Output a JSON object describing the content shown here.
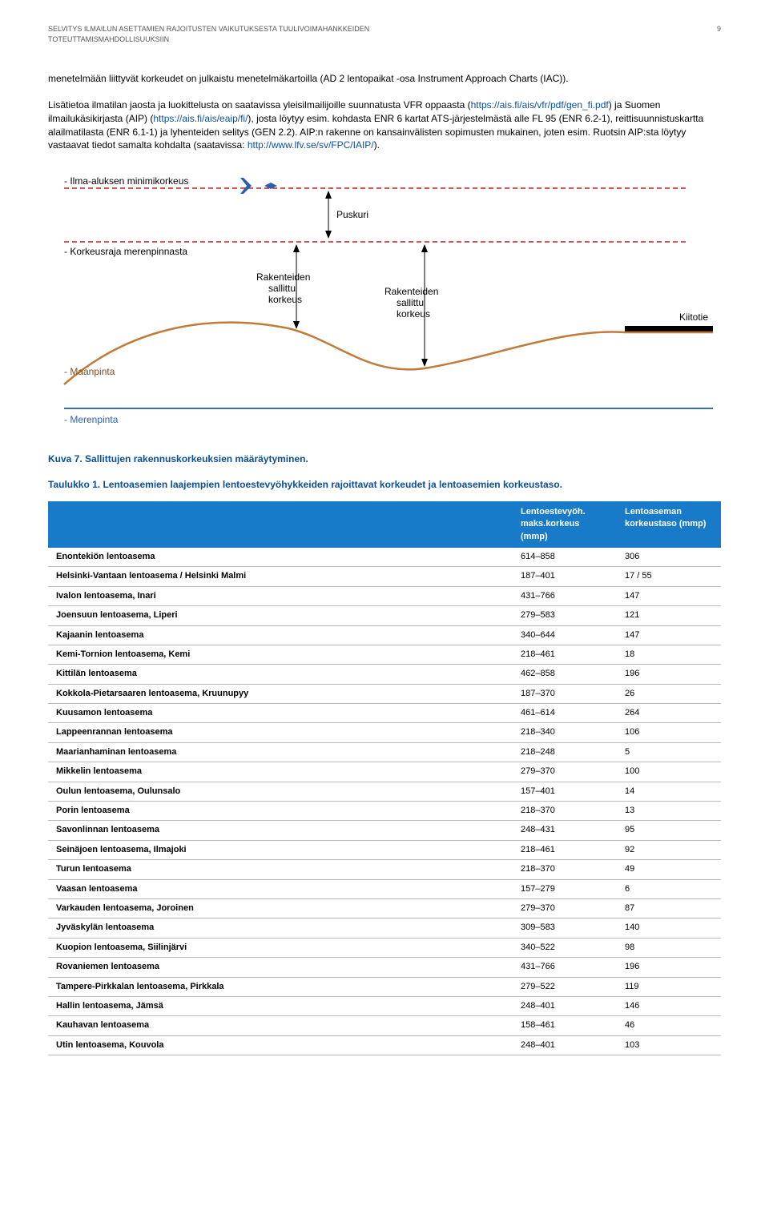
{
  "header": {
    "line1": "SELVITYS ILMAILUN ASETTAMIEN RAJOITUSTEN VAIKUTUKSESTA TUULIVOIMAHANKKEIDEN",
    "line2": "TOTEUTTAMISMAHDOLLISUUKSIIN",
    "pageNumber": "9"
  },
  "paragraphs": {
    "p1": "menetelmään liittyvät korkeudet on julkaistu menetelmäkartoilla (AD 2 lentopaikat -osa Instrument Approach Charts (IAC)).",
    "p2_a": "Lisätietoa ilmatilan jaosta ja luokittelusta on saatavissa yleisilmailijoille suunnatusta VFR oppaasta (",
    "p2_link1": "https://ais.fi/ais/vfr/pdf/gen_fi.pdf",
    "p2_b": ") ja Suomen ilmailukäsikirjasta (AIP) (",
    "p2_link2": "https://ais.fi/ais/eaip/fi/",
    "p2_c": "), josta löytyy esim. kohdasta ENR 6 kartat ATS-järjestelmästä alle FL 95 (ENR 6.2-1), reittisuunnistuskartta alailmatilasta (ENR 6.1-1) ja lyhenteiden selitys (GEN 2.2). AIP:n rakenne on kansainvälisten sopimusten mukainen, joten esim. Ruotsin AIP:sta löytyy vastaavat tiedot samalta kohdalta (saatavissa: ",
    "p2_link3": "http://www.lfv.se/sv/FPC/IAIP/",
    "p2_d": ")."
  },
  "diagram": {
    "labels": {
      "minAltitude": "- Ilma-aluksen minimikorkeus",
      "buffer": "Puskuri",
      "heightLimitSea": "- Korkeusraja merenpinnasta",
      "allowedHeight1": "Rakenteiden\nsallittu\nkorkeus",
      "allowedHeight2": "Rakenteiden\nsallittu\nkorkeus",
      "runway": "Kiitotie",
      "ground": "- Maanpinta",
      "sea": "- Merenpinta"
    },
    "colors": {
      "aircraft": "#2a5fb0",
      "dashedRed": "#c02020",
      "arrowBlack": "#000000",
      "groundBrown": "#c27a3a",
      "seaBlue": "#3a6fb0",
      "runwayBlack": "#000000"
    }
  },
  "captions": {
    "fig": "Kuva 7. Sallittujen rakennuskorkeuksien määräytyminen.",
    "tab": "Taulukko 1. Lentoasemien laajempien lentoestevyöhykkeiden rajoittavat korkeudet ja lentoasemien korkeustaso."
  },
  "table": {
    "headers": {
      "c1": "",
      "c2": "Lentoestevyöh. maks.korkeus (mmp)",
      "c3": "Lentoaseman korkeustaso (mmp)"
    },
    "rows": [
      {
        "name": "Enontekiön lentoasema",
        "h": "614–858",
        "alt": "306"
      },
      {
        "name": "Helsinki-Vantaan lentoasema / Helsinki Malmi",
        "h": "187–401",
        "alt": "17 / 55"
      },
      {
        "name": "Ivalon lentoasema, Inari",
        "h": "431–766",
        "alt": "147"
      },
      {
        "name": "Joensuun lentoasema, Liperi",
        "h": "279–583",
        "alt": "121"
      },
      {
        "name": "Kajaanin lentoasema",
        "h": "340–644",
        "alt": "147"
      },
      {
        "name": "Kemi-Tornion lentoasema, Kemi",
        "h": "218–461",
        "alt": "18"
      },
      {
        "name": "Kittilän lentoasema",
        "h": "462–858",
        "alt": "196"
      },
      {
        "name": "Kokkola-Pietarsaaren lentoasema, Kruunupyy",
        "h": "187–370",
        "alt": "26"
      },
      {
        "name": "Kuusamon lentoasema",
        "h": "461–614",
        "alt": "264"
      },
      {
        "name": "Lappeenrannan lentoasema",
        "h": "218–340",
        "alt": "106"
      },
      {
        "name": "Maarianhaminan lentoasema",
        "h": "218–248",
        "alt": "5"
      },
      {
        "name": "Mikkelin lentoasema",
        "h": "279–370",
        "alt": "100"
      },
      {
        "name": "Oulun lentoasema, Oulunsalo",
        "h": "157–401",
        "alt": "14"
      },
      {
        "name": "Porin lentoasema",
        "h": "218–370",
        "alt": "13"
      },
      {
        "name": "Savonlinnan lentoasema",
        "h": "248–431",
        "alt": "95"
      },
      {
        "name": "Seinäjoen lentoasema, Ilmajoki",
        "h": "218–461",
        "alt": "92"
      },
      {
        "name": "Turun lentoasema",
        "h": "218–370",
        "alt": "49"
      },
      {
        "name": "Vaasan lentoasema",
        "h": "157–279",
        "alt": "6"
      },
      {
        "name": "Varkauden lentoasema, Joroinen",
        "h": "279–370",
        "alt": "87"
      },
      {
        "name": "Jyväskylän lentoasema",
        "h": "309–583",
        "alt": "140"
      },
      {
        "name": "Kuopion lentoasema, Siilinjärvi",
        "h": "340–522",
        "alt": "98"
      },
      {
        "name": "Rovaniemen lentoasema",
        "h": "431–766",
        "alt": "196"
      },
      {
        "name": "Tampere-Pirkkalan lentoasema, Pirkkala",
        "h": "279–522",
        "alt": "119"
      },
      {
        "name": "Hallin lentoasema, Jämsä",
        "h": "248–401",
        "alt": "146"
      },
      {
        "name": "Kauhavan lentoasema",
        "h": "158–461",
        "alt": "46"
      },
      {
        "name": "Utin lentoasema, Kouvola",
        "h": "248–401",
        "alt": "103"
      }
    ]
  }
}
